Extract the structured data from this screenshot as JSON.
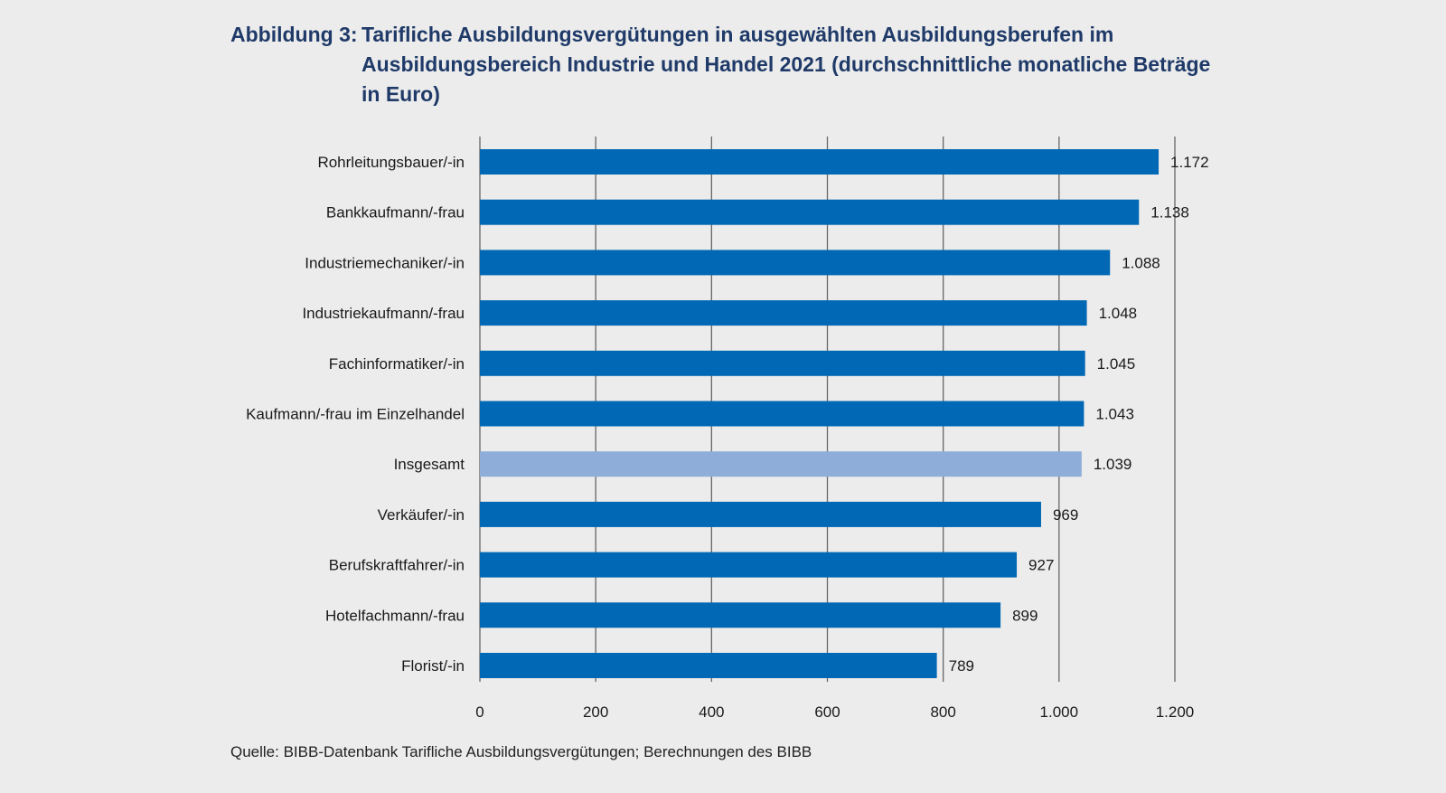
{
  "figure": {
    "label": "Abbildung 3:",
    "title": "Tarifliche Ausbildungsvergütungen in ausgewählten Ausbildungsberufen im Ausbildungsbereich Industrie und Handel 2021 (durchschnittliche monatliche Beträge in Euro)",
    "source": "Quelle: BIBB-Datenbank Tarifliche Ausbildungsvergütungen; Berechnungen des BIBB"
  },
  "chart_data": {
    "type": "bar",
    "orientation": "horizontal",
    "categories": [
      "Rohrleitungsbauer/-in",
      "Bankkaufmann/-frau",
      "Industriemechaniker/-in",
      "Industriekaufmann/-frau",
      "Fachinformatiker/-in",
      "Kaufmann/-frau im Einzelhandel",
      "Insgesamt",
      "Verkäufer/-in",
      "Berufskraftfahrer/-in",
      "Hotelfachmann/-frau",
      "Florist/-in"
    ],
    "values": [
      1172,
      1138,
      1088,
      1048,
      1045,
      1043,
      1039,
      969,
      927,
      899,
      789
    ],
    "value_labels": [
      "1.172",
      "1.138",
      "1.088",
      "1.048",
      "1.045",
      "1.043",
      "1.039",
      "969",
      "927",
      "899",
      "789"
    ],
    "highlight_category": "Insgesamt",
    "xlim": [
      0,
      1200
    ],
    "xticks": [
      0,
      200,
      400,
      600,
      800,
      1000,
      1200
    ],
    "xtick_labels": [
      "0",
      "200",
      "400",
      "600",
      "800",
      "1.000",
      "1.200"
    ],
    "grid": true,
    "legend": "none",
    "colors": {
      "bar": "#0068b4",
      "highlight_bar": "#8eadd9",
      "grid": "#666666",
      "text": "#1a1a1a",
      "title": "#1f3a68"
    }
  }
}
